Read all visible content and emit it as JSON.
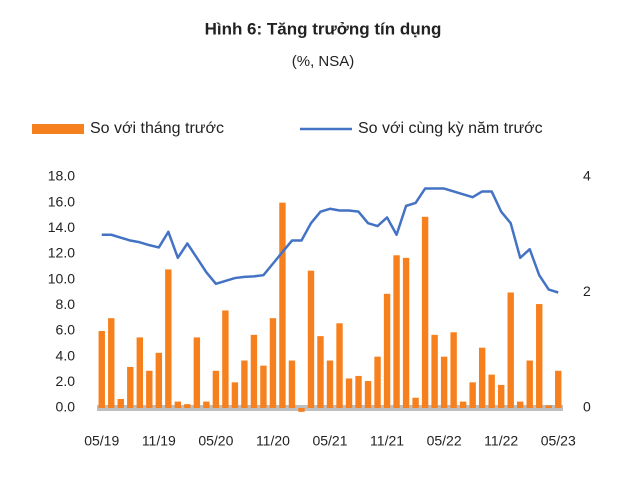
{
  "chart_data": {
    "type": "bar-line",
    "title": "Hình 6: Tăng trưởng tín dụng",
    "subtitle": "(%, NSA)",
    "categories": [
      "05/19",
      null,
      null,
      null,
      null,
      null,
      "11/19",
      null,
      null,
      null,
      null,
      null,
      "05/20",
      null,
      null,
      null,
      null,
      null,
      "11/20",
      null,
      null,
      null,
      null,
      null,
      "05/21",
      null,
      null,
      null,
      null,
      null,
      "11/21",
      null,
      null,
      null,
      null,
      null,
      "05/22",
      null,
      null,
      null,
      null,
      null,
      "11/22",
      null,
      null,
      null,
      null,
      null,
      "05/23"
    ],
    "series": [
      {
        "name": "So với tháng trước",
        "color": "#f7801e",
        "type": "bar",
        "values": [
          6.0,
          7.0,
          0.7,
          3.2,
          5.5,
          2.9,
          4.3,
          10.8,
          0.5,
          0.3,
          5.5,
          0.5,
          2.9,
          7.6,
          2.0,
          3.7,
          5.7,
          3.3,
          7.0,
          16.0,
          3.7,
          -0.3,
          10.7,
          5.6,
          3.7,
          6.6,
          2.3,
          2.5,
          2.1,
          4.0,
          8.9,
          11.9,
          11.7,
          0.8,
          14.9,
          5.7,
          4.0,
          5.9,
          0.5,
          2.0,
          4.7,
          2.6,
          1.8,
          9.0,
          0.5,
          3.7,
          8.1,
          0.2,
          2.9
        ]
      },
      {
        "name": "So với cùng kỳ năm trước",
        "color": "#4472c4",
        "type": "line",
        "axis": "y2",
        "values": [
          3.0,
          3.0,
          2.95,
          2.9,
          2.87,
          2.82,
          2.78,
          3.05,
          2.6,
          2.85,
          2.6,
          2.35,
          2.15,
          2.2,
          2.25,
          2.27,
          2.28,
          2.3,
          2.5,
          2.7,
          2.9,
          2.9,
          3.2,
          3.4,
          3.45,
          3.42,
          3.42,
          3.4,
          3.2,
          3.15,
          3.3,
          3.0,
          3.5,
          3.55,
          3.8,
          3.8,
          3.8,
          3.75,
          3.7,
          3.65,
          3.75,
          3.75,
          3.4,
          3.2,
          2.6,
          2.75,
          2.3,
          2.05,
          2.0
        ]
      }
    ],
    "ylim": [
      0,
      18
    ],
    "yticks": [
      {
        "value": 0,
        "label": "0.0"
      },
      {
        "value": 2,
        "label": "2.0"
      },
      {
        "value": 4,
        "label": "4.0"
      },
      {
        "value": 6,
        "label": "6.0"
      },
      {
        "value": 8,
        "label": "8.0"
      },
      {
        "value": 10,
        "label": "10.0"
      },
      {
        "value": 12,
        "label": "12.0"
      },
      {
        "value": 14,
        "label": "14.0"
      },
      {
        "value": 16,
        "label": "16.0"
      },
      {
        "value": 18,
        "label": "18.0"
      }
    ],
    "y2lim": [
      0,
      4
    ],
    "y2ticks": [
      0,
      2,
      4
    ],
    "grid": false
  }
}
